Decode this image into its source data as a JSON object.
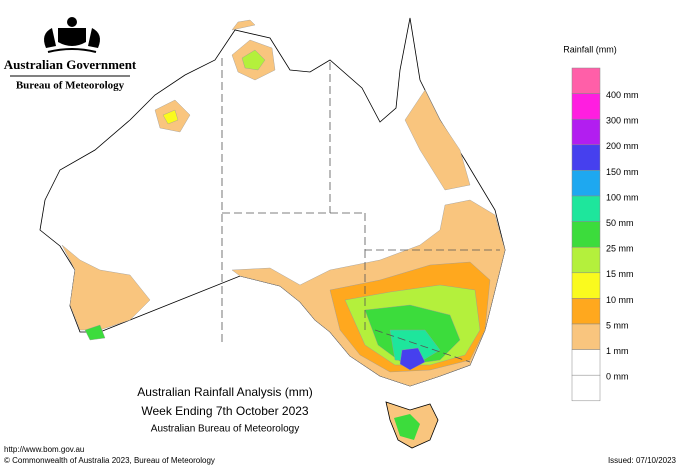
{
  "header": {
    "government": "Australian Government",
    "agency": "Bureau of Meteorology"
  },
  "legend": {
    "title": "Rainfall (mm)",
    "labels": [
      "400 mm",
      "300 mm",
      "200 mm",
      "150 mm",
      "100 mm",
      "50 mm",
      "25 mm",
      "15 mm",
      "10 mm",
      "5 mm",
      "1 mm",
      "0 mm"
    ],
    "colors": [
      "#ff5fa8",
      "#ff1ee0",
      "#b21ef0",
      "#4640ee",
      "#1ea8f0",
      "#1ee69c",
      "#3cdc3c",
      "#b4f03c",
      "#fafa1e",
      "#ffa81e",
      "#f9c57e",
      "#ffffff"
    ]
  },
  "titles": [
    "Australian Rainfall Analysis (mm)",
    "Week Ending 7th October 2023",
    "Australian Bureau of Meteorology"
  ],
  "footer": {
    "url": "http://www.bom.gov.au",
    "copyright": "© Commonwealth of Australia 2023, Bureau of Meteorology",
    "issued": "Issued: 07/10/2023"
  }
}
